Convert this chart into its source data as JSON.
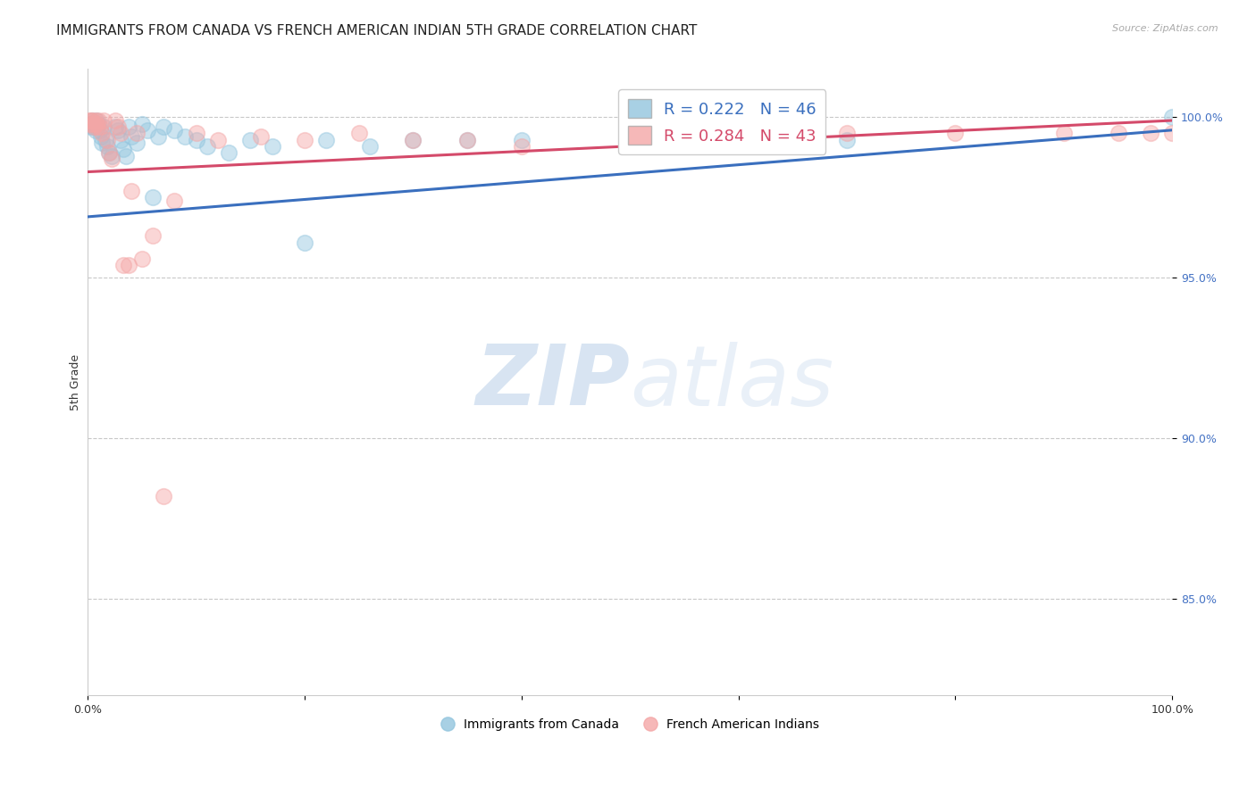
{
  "title": "IMMIGRANTS FROM CANADA VS FRENCH AMERICAN INDIAN 5TH GRADE CORRELATION CHART",
  "source": "Source: ZipAtlas.com",
  "ylabel": "5th Grade",
  "x_min": 0.0,
  "x_max": 1.0,
  "y_min": 0.82,
  "y_max": 1.015,
  "y_ticks": [
    0.85,
    0.9,
    0.95,
    1.0
  ],
  "y_tick_labels": [
    "85.0%",
    "90.0%",
    "95.0%",
    "100.0%"
  ],
  "blue_color": "#92c5de",
  "pink_color": "#f4a6a6",
  "blue_line_color": "#3a6fbe",
  "pink_line_color": "#d44a6a",
  "legend_blue_label": "R = 0.222   N = 46",
  "legend_pink_label": "R = 0.284   N = 43",
  "legend_blue_series": "Immigrants from Canada",
  "legend_pink_series": "French American Indians",
  "blue_x": [
    0.002,
    0.003,
    0.004,
    0.005,
    0.006,
    0.007,
    0.008,
    0.009,
    0.01,
    0.011,
    0.012,
    0.013,
    0.015,
    0.016,
    0.018,
    0.02,
    0.022,
    0.025,
    0.028,
    0.03,
    0.033,
    0.035,
    0.038,
    0.04,
    0.045,
    0.05,
    0.055,
    0.06,
    0.065,
    0.07,
    0.08,
    0.09,
    0.1,
    0.11,
    0.13,
    0.15,
    0.17,
    0.2,
    0.22,
    0.26,
    0.3,
    0.35,
    0.4,
    0.5,
    0.7,
    1.0
  ],
  "blue_y": [
    0.998,
    0.997,
    0.999,
    0.998,
    0.997,
    0.996,
    0.999,
    0.997,
    0.998,
    0.996,
    0.994,
    0.992,
    0.997,
    0.993,
    0.991,
    0.989,
    0.988,
    0.997,
    0.996,
    0.993,
    0.99,
    0.988,
    0.997,
    0.994,
    0.992,
    0.998,
    0.996,
    0.975,
    0.994,
    0.997,
    0.996,
    0.994,
    0.993,
    0.991,
    0.989,
    0.993,
    0.991,
    0.961,
    0.993,
    0.991,
    0.993,
    0.993,
    0.993,
    0.993,
    0.993,
    1.0
  ],
  "pink_x": [
    0.001,
    0.002,
    0.003,
    0.004,
    0.005,
    0.006,
    0.007,
    0.008,
    0.009,
    0.01,
    0.011,
    0.013,
    0.015,
    0.018,
    0.02,
    0.022,
    0.025,
    0.028,
    0.03,
    0.033,
    0.038,
    0.04,
    0.045,
    0.05,
    0.06,
    0.07,
    0.08,
    0.1,
    0.12,
    0.16,
    0.2,
    0.25,
    0.3,
    0.35,
    0.4,
    0.5,
    0.6,
    0.7,
    0.8,
    0.9,
    0.95,
    0.98,
    1.0
  ],
  "pink_y": [
    0.999,
    0.998,
    0.999,
    0.999,
    0.998,
    0.997,
    0.999,
    0.998,
    0.997,
    0.999,
    0.997,
    0.995,
    0.999,
    0.993,
    0.989,
    0.987,
    0.999,
    0.997,
    0.995,
    0.954,
    0.954,
    0.977,
    0.995,
    0.956,
    0.963,
    0.882,
    0.974,
    0.995,
    0.993,
    0.994,
    0.993,
    0.995,
    0.993,
    0.993,
    0.991,
    0.995,
    0.995,
    0.995,
    0.995,
    0.995,
    0.995,
    0.995,
    0.995
  ],
  "blue_line_x0": 0.0,
  "blue_line_y0": 0.969,
  "blue_line_x1": 1.0,
  "blue_line_y1": 0.996,
  "pink_line_x0": 0.0,
  "pink_line_y0": 0.983,
  "pink_line_x1": 1.0,
  "pink_line_y1": 0.999,
  "watermark_zip": "ZIP",
  "watermark_atlas": "atlas",
  "watermark_alpha": 0.12,
  "background_color": "#ffffff",
  "grid_color": "#c8c8c8",
  "title_fontsize": 11,
  "tick_label_color_y": "#4472c4",
  "tick_label_fontsize": 9
}
